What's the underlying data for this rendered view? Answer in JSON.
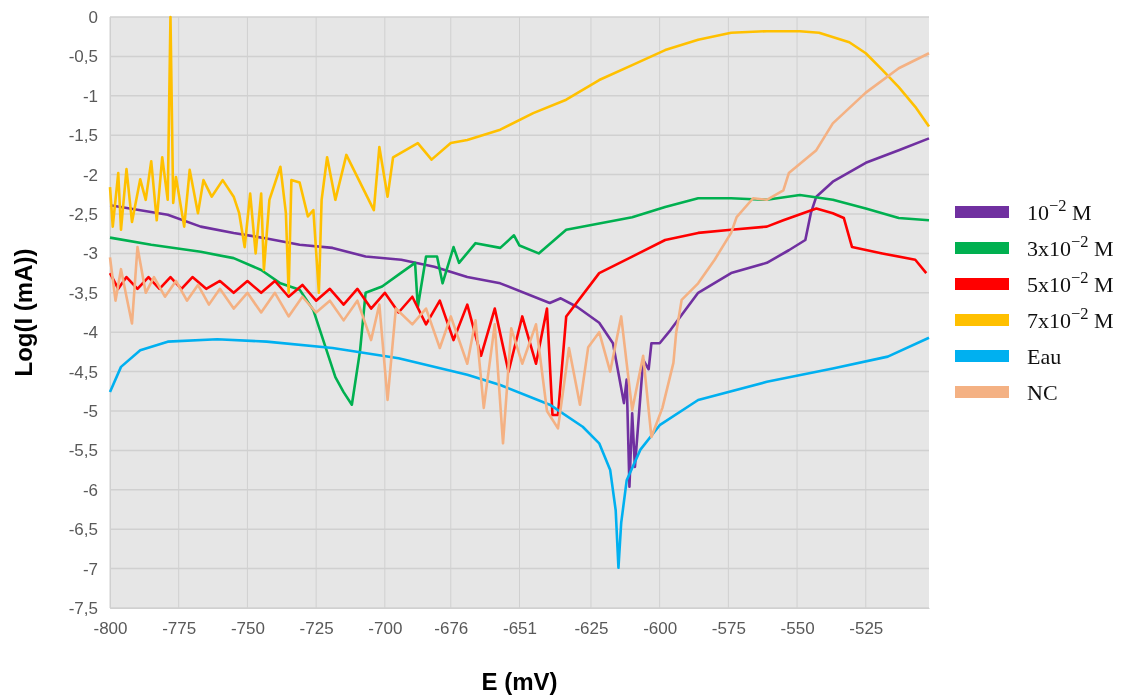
{
  "chart_data": {
    "type": "line",
    "xlabel": "E (mV)",
    "ylabel": "Log(I (mA))",
    "xlim": [
      -800,
      -502
    ],
    "ylim": [
      -7.5,
      0
    ],
    "xticks": [
      -800,
      -775,
      -750,
      -725,
      -700,
      -676,
      -651,
      -625,
      -600,
      -575,
      -550,
      -525
    ],
    "yticks": [
      0,
      {
        "value": -0.5,
        "label": "-0,5"
      },
      -1,
      {
        "value": -1.5,
        "label": "-1,5"
      },
      -2,
      {
        "value": -2.5,
        "label": "-2,5"
      },
      -3,
      {
        "value": -3.5,
        "label": "-3,5"
      },
      -4,
      {
        "value": -4.5,
        "label": "-4,5"
      },
      -5,
      {
        "value": -5.5,
        "label": "-5,5"
      },
      -6,
      {
        "value": -6.5,
        "label": "-6,5"
      },
      -7,
      {
        "value": -7.5,
        "label": "-7,5"
      }
    ],
    "grid": true,
    "legend": "right",
    "line_style": "solid",
    "marker": "none",
    "series": [
      {
        "name": "10$^{−2}$ M",
        "color": "#7030a0",
        "x": [
          -800,
          -779,
          -767,
          -755,
          -743,
          -731,
          -719,
          -707,
          -694,
          -682,
          -670,
          -658,
          -640,
          -636,
          -630,
          -622,
          -617,
          -613,
          -612,
          -611,
          -610,
          -609,
          -606,
          -604,
          -603,
          -600,
          -596,
          -586,
          -574,
          -561,
          -553,
          -547,
          -545,
          -543,
          -537,
          -525,
          -513,
          -502
        ],
        "values": [
          -2.39,
          -2.51,
          -2.66,
          -2.74,
          -2.81,
          -2.89,
          -2.93,
          -3.04,
          -3.08,
          -3.17,
          -3.3,
          -3.38,
          -3.63,
          -3.57,
          -3.68,
          -3.88,
          -4.14,
          -4.9,
          -4.6,
          -5.96,
          -5.03,
          -5.71,
          -4.35,
          -4.47,
          -4.14,
          -4.14,
          -3.97,
          -3.5,
          -3.25,
          -3.12,
          -2.96,
          -2.83,
          -2.49,
          -2.28,
          -2.09,
          -1.85,
          -1.69,
          -1.54
        ]
      },
      {
        "name": "3x10$^{−2}$ M",
        "color": "#00b050",
        "x": [
          -800,
          -785,
          -767,
          -755,
          -745,
          -738,
          -731,
          -726,
          -718,
          -715,
          -712,
          -709,
          -707,
          -701,
          -695,
          -689,
          -688,
          -685,
          -681,
          -679,
          -675,
          -673,
          -667,
          -658,
          -653,
          -651,
          -644,
          -634,
          -622,
          -610,
          -598,
          -586,
          -574,
          -561,
          -549,
          -537,
          -525,
          -513,
          -502
        ],
        "values": [
          -2.8,
          -2.89,
          -2.98,
          -3.06,
          -3.21,
          -3.38,
          -3.46,
          -3.72,
          -4.57,
          -4.76,
          -4.92,
          -4.23,
          -3.5,
          -3.42,
          -3.27,
          -3.12,
          -3.68,
          -3.04,
          -3.04,
          -3.38,
          -2.92,
          -3.12,
          -2.87,
          -2.93,
          -2.77,
          -2.9,
          -3.0,
          -2.7,
          -2.62,
          -2.54,
          -2.41,
          -2.3,
          -2.3,
          -2.32,
          -2.26,
          -2.32,
          -2.43,
          -2.55,
          -2.58
        ]
      },
      {
        "name": "5x10$^{−2}$ M",
        "color": "#ff0000",
        "x": [
          -800,
          -797,
          -794,
          -790,
          -786,
          -782,
          -778,
          -774,
          -770,
          -765,
          -760,
          -755,
          -750,
          -745,
          -740,
          -735,
          -730,
          -725,
          -720,
          -715,
          -710,
          -705,
          -700,
          -695,
          -690,
          -685,
          -680,
          -675,
          -670,
          -665,
          -660,
          -655,
          -650,
          -645,
          -641,
          -639,
          -637,
          -634,
          -622,
          -610,
          -598,
          -586,
          -574,
          -561,
          -555,
          -543,
          -537,
          -533,
          -530,
          -519,
          -507,
          -503
        ],
        "values": [
          -3.25,
          -3.45,
          -3.3,
          -3.45,
          -3.3,
          -3.45,
          -3.3,
          -3.45,
          -3.3,
          -3.45,
          -3.35,
          -3.5,
          -3.35,
          -3.5,
          -3.35,
          -3.55,
          -3.4,
          -3.6,
          -3.45,
          -3.65,
          -3.45,
          -3.7,
          -3.5,
          -3.75,
          -3.55,
          -3.9,
          -3.6,
          -4.1,
          -3.65,
          -4.3,
          -3.7,
          -4.5,
          -3.8,
          -4.4,
          -3.7,
          -5.05,
          -5.05,
          -3.8,
          -3.25,
          -3.04,
          -2.83,
          -2.74,
          -2.7,
          -2.66,
          -2.58,
          -2.43,
          -2.49,
          -2.55,
          -2.92,
          -3.0,
          -3.08,
          -3.25
        ]
      },
      {
        "name": "7x10$^{−2}$ M",
        "color": "#ffc000",
        "x": [
          -800,
          -799,
          -797,
          -796,
          -794,
          -792,
          -789,
          -787,
          -785,
          -783,
          -781,
          -779,
          -778,
          -777,
          -776,
          -773,
          -771,
          -768,
          -766,
          -763,
          -759,
          -755,
          -753,
          -751,
          -749,
          -747,
          -745,
          -744,
          -742,
          -738,
          -736,
          -735,
          -734,
          -731,
          -728,
          -726,
          -724,
          -723,
          -721,
          -718,
          -714,
          -704,
          -702,
          -699,
          -697,
          -688,
          -683,
          -676,
          -670,
          -658,
          -646,
          -634,
          -622,
          -610,
          -598,
          -586,
          -574,
          -561,
          -549,
          -542,
          -531,
          -525,
          -519,
          -513,
          -507,
          -502
        ],
        "values": [
          -2.16,
          -2.66,
          -1.98,
          -2.7,
          -1.93,
          -2.6,
          -2.06,
          -2.32,
          -1.83,
          -2.58,
          -1.78,
          -2.32,
          0,
          -2.36,
          -2.03,
          -2.66,
          -1.94,
          -2.49,
          -2.07,
          -2.28,
          -2.07,
          -2.28,
          -2.49,
          -2.92,
          -2.24,
          -3.0,
          -2.24,
          -3.21,
          -2.32,
          -1.9,
          -2.49,
          -3.5,
          -2.07,
          -2.1,
          -2.53,
          -2.45,
          -3.5,
          -2.32,
          -1.78,
          -2.32,
          -1.75,
          -2.45,
          -1.65,
          -2.28,
          -1.78,
          -1.6,
          -1.81,
          -1.6,
          -1.56,
          -1.43,
          -1.22,
          -1.05,
          -0.8,
          -0.61,
          -0.42,
          -0.29,
          -0.2,
          -0.18,
          -0.18,
          -0.2,
          -0.32,
          -0.46,
          -0.67,
          -0.89,
          -1.14,
          -1.39
        ]
      },
      {
        "name": "Eau",
        "color": "#00b0f0",
        "x": [
          -800,
          -796,
          -789,
          -779,
          -761,
          -743,
          -719,
          -695,
          -670,
          -658,
          -640,
          -628,
          -622,
          -618,
          -616,
          -615,
          -614,
          -612,
          -607,
          -600,
          -586,
          -561,
          -537,
          -517,
          -502
        ],
        "values": [
          -4.76,
          -4.44,
          -4.23,
          -4.12,
          -4.09,
          -4.12,
          -4.2,
          -4.33,
          -4.54,
          -4.67,
          -4.92,
          -5.2,
          -5.41,
          -5.75,
          -6.26,
          -6.99,
          -6.42,
          -5.88,
          -5.49,
          -5.18,
          -4.86,
          -4.63,
          -4.46,
          -4.31,
          -4.07
        ]
      },
      {
        "name": "NC",
        "color": "#f4b183",
        "x": [
          -800,
          -798,
          -796,
          -794,
          -792,
          -790,
          -787,
          -784,
          -780,
          -776,
          -772,
          -768,
          -764,
          -760,
          -755,
          -750,
          -745,
          -740,
          -735,
          -730,
          -725,
          -720,
          -715,
          -710,
          -705,
          -702,
          -699,
          -696,
          -690,
          -685,
          -680,
          -676,
          -670,
          -667,
          -664,
          -660,
          -657,
          -654,
          -650,
          -645,
          -641,
          -637,
          -633,
          -629,
          -626,
          -622,
          -618,
          -614,
          -610,
          -606,
          -603,
          -599,
          -595,
          -594,
          -592,
          -586,
          -580,
          -574,
          -572,
          -566,
          -561,
          -555,
          -553,
          -543,
          -537,
          -525,
          -513,
          -502
        ],
        "values": [
          -3.05,
          -3.6,
          -3.2,
          -3.55,
          -3.89,
          -2.92,
          -3.5,
          -3.3,
          -3.55,
          -3.35,
          -3.6,
          -3.4,
          -3.65,
          -3.45,
          -3.7,
          -3.5,
          -3.75,
          -3.5,
          -3.8,
          -3.55,
          -3.75,
          -3.6,
          -3.85,
          -3.6,
          -4.1,
          -3.65,
          -4.86,
          -3.7,
          -3.9,
          -3.7,
          -4.2,
          -3.8,
          -4.4,
          -3.85,
          -4.96,
          -3.9,
          -5.41,
          -3.95,
          -4.4,
          -3.9,
          -5.0,
          -5.22,
          -4.2,
          -4.92,
          -4.19,
          -4.0,
          -4.5,
          -3.8,
          -4.99,
          -4.3,
          -5.33,
          -4.96,
          -4.39,
          -4.01,
          -3.59,
          -3.38,
          -3.08,
          -2.74,
          -2.54,
          -2.3,
          -2.32,
          -2.2,
          -1.98,
          -1.69,
          -1.35,
          -0.96,
          -0.65,
          -0.46
        ]
      }
    ]
  }
}
